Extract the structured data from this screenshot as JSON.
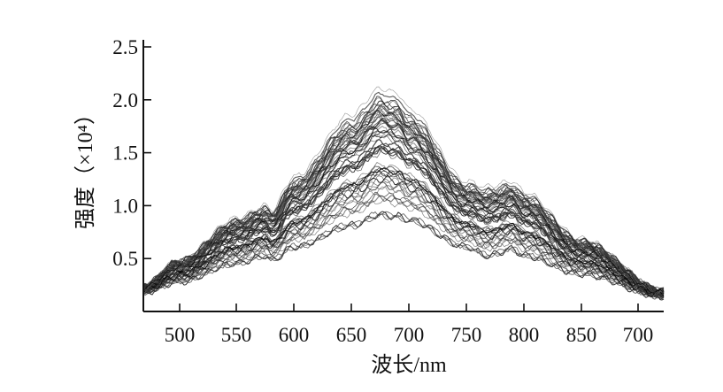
{
  "chart_data": {
    "type": "line",
    "title": "",
    "xlabel": "波长/nm",
    "ylabel": "强度（×10⁴）",
    "x_tick_labels": [
      "500",
      "550",
      "600",
      "650",
      "700",
      "750",
      "800",
      "850",
      "700"
    ],
    "y_ticks": [
      "0.5",
      "1.0",
      "1.5",
      "2.0",
      "2.5"
    ],
    "xlim": [
      468,
      718
    ],
    "ylim": [
      0,
      2.5
    ],
    "grid": false,
    "legend": "none",
    "series_count": 60,
    "line_color": "#1a1a1a",
    "envelope": {
      "x": [
        468,
        500,
        550,
        575,
        580,
        600,
        650,
        675,
        690,
        700,
        750,
        768,
        790,
        800,
        850,
        700
      ],
      "upper": [
        0.25,
        0.5,
        0.9,
        1.02,
        0.98,
        1.3,
        1.9,
        2.15,
        2.1,
        1.95,
        1.25,
        1.2,
        1.25,
        1.15,
        0.7,
        0.2
      ],
      "middle": [
        0.2,
        0.38,
        0.65,
        0.78,
        0.72,
        0.95,
        1.35,
        1.5,
        1.47,
        1.38,
        0.95,
        0.88,
        0.92,
        0.85,
        0.55,
        0.17
      ],
      "lower": [
        0.18,
        0.28,
        0.45,
        0.52,
        0.48,
        0.6,
        0.8,
        0.9,
        0.88,
        0.85,
        0.6,
        0.52,
        0.58,
        0.52,
        0.35,
        0.14
      ]
    }
  }
}
